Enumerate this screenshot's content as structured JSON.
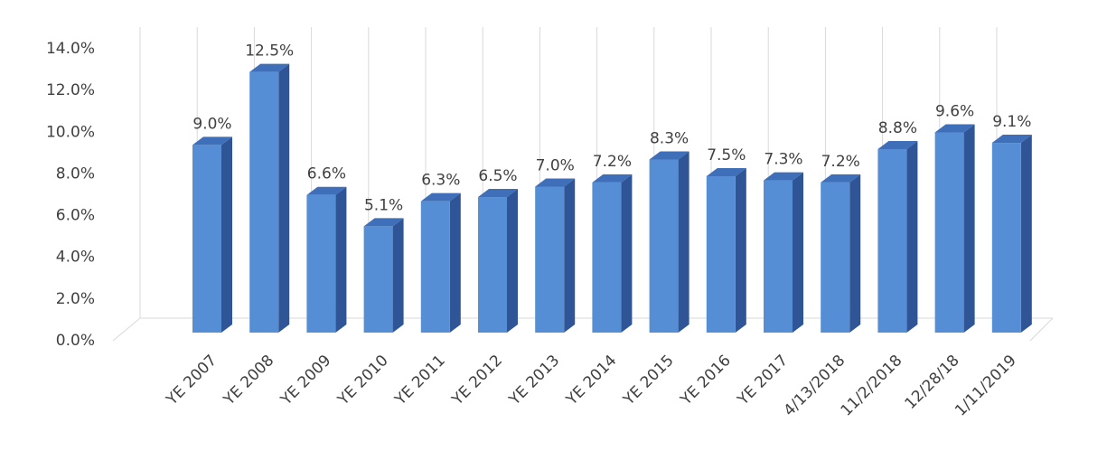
{
  "chart_data": {
    "type": "bar3d",
    "categories": [
      "YE 2007",
      "YE 2008",
      "YE 2009",
      "YE 2010",
      "YE 2011",
      "YE 2012",
      "YE 2013",
      "YE 2014",
      "YE 2015",
      "YE 2016",
      "YE 2017",
      "4/13/2018",
      "11/2/2018",
      "12/28/18",
      "1/11/2019"
    ],
    "values": [
      9.0,
      12.5,
      6.6,
      5.1,
      6.3,
      6.5,
      7.0,
      7.2,
      8.3,
      7.5,
      7.3,
      7.2,
      8.8,
      9.6,
      9.1
    ],
    "value_labels": [
      "9.0%",
      "12.5%",
      "6.6%",
      "5.1%",
      "6.3%",
      "6.5%",
      "7.0%",
      "7.2%",
      "8.3%",
      "7.5%",
      "7.3%",
      "7.2%",
      "8.8%",
      "9.6%",
      "9.1%"
    ],
    "color": "#558ed5",
    "ylim": [
      0,
      14
    ],
    "yticks": [
      {
        "value": 0,
        "label": "0.0%"
      },
      {
        "value": 2,
        "label": "2.0%"
      },
      {
        "value": 4,
        "label": "4.0%"
      },
      {
        "value": 6,
        "label": "6.0%"
      },
      {
        "value": 8,
        "label": "8.0%"
      },
      {
        "value": 10,
        "label": "10.0%"
      },
      {
        "value": 12,
        "label": "12.0%"
      },
      {
        "value": 14,
        "label": "14.0%"
      }
    ]
  }
}
